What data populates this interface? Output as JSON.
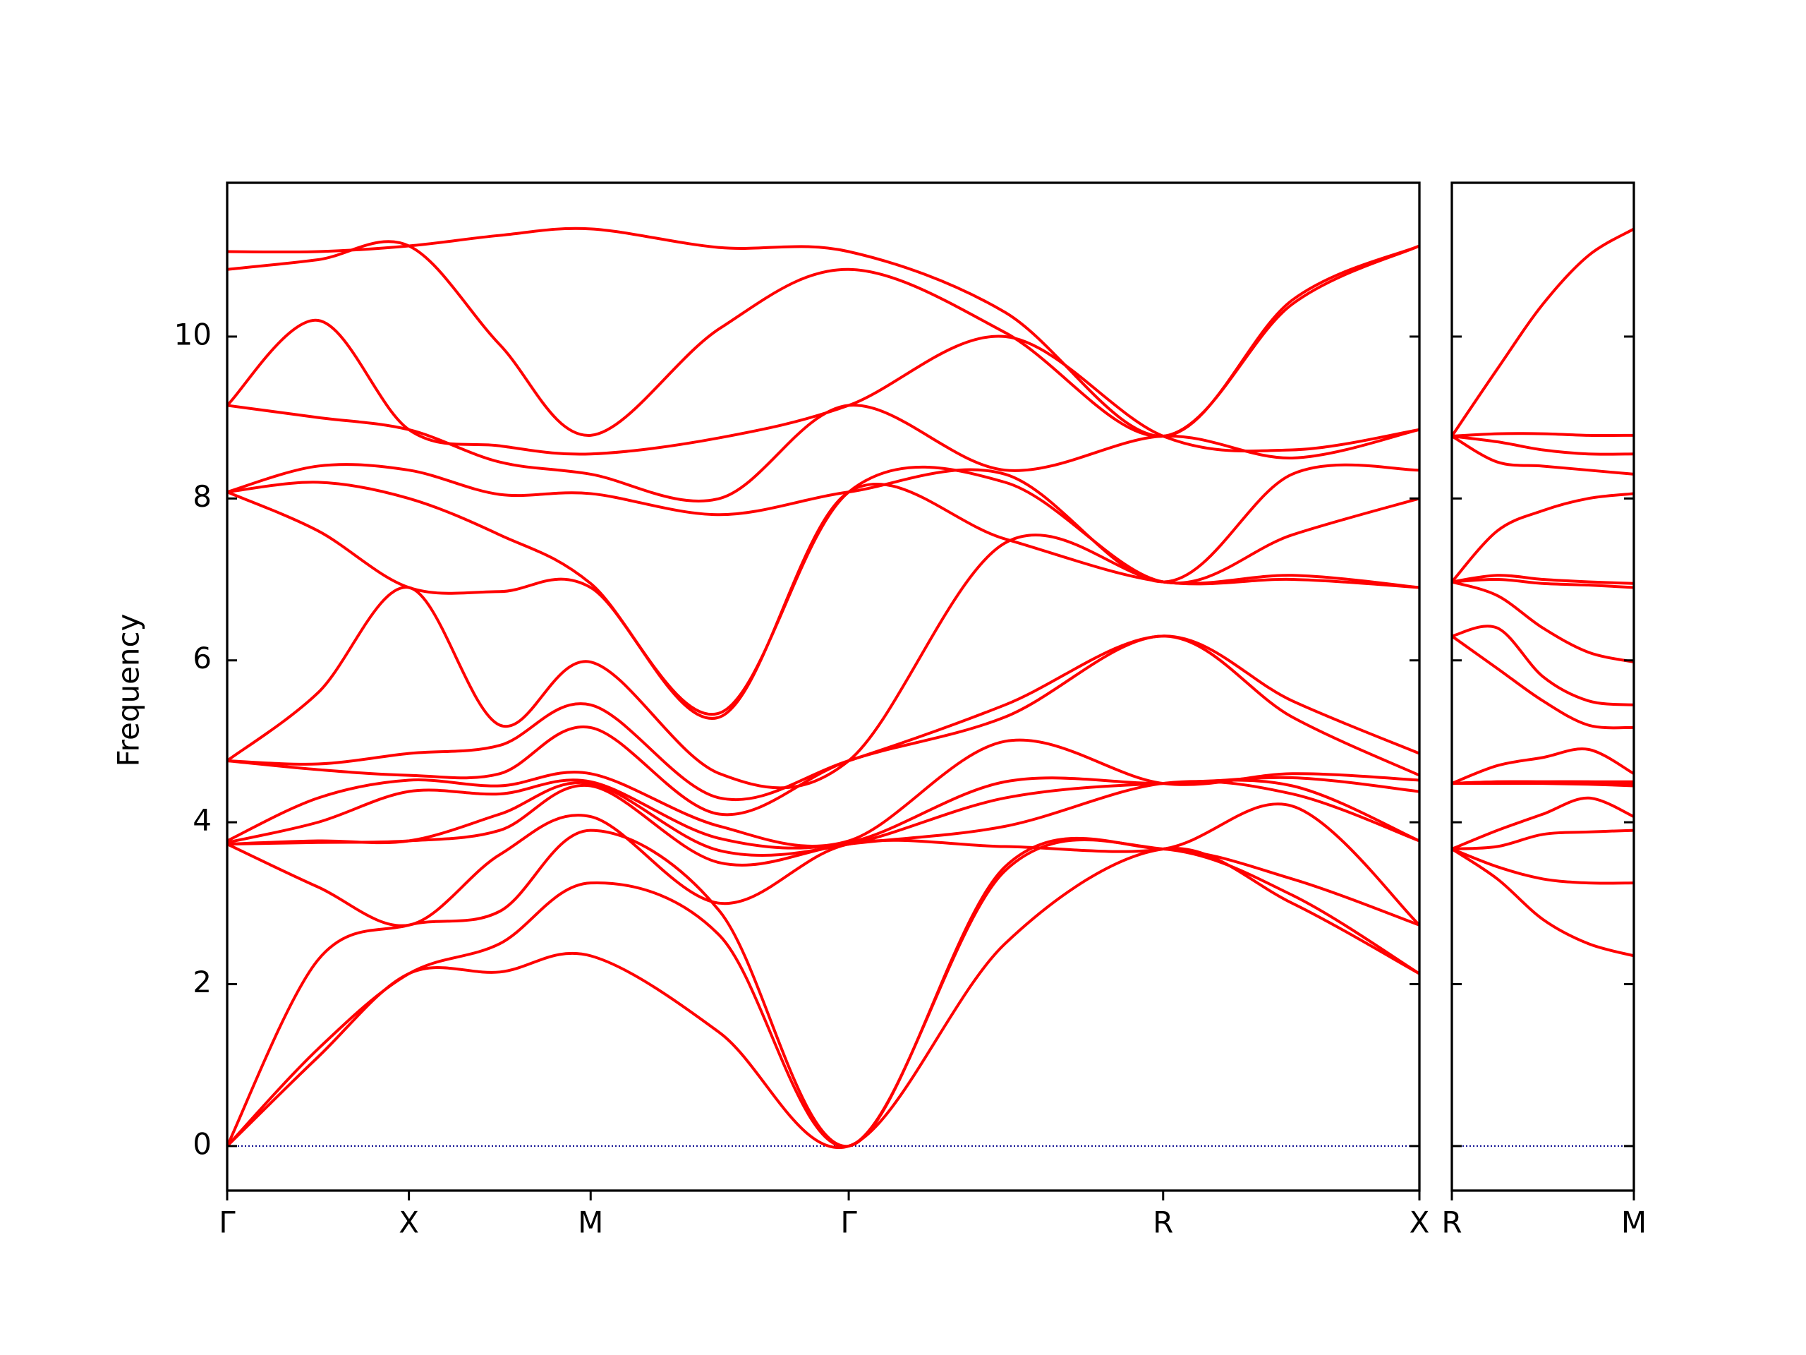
{
  "chart_data": [
    {
      "type": "line",
      "ylabel": "Frequency",
      "color": "#ff0000",
      "hline": 0,
      "hline_color": "#00008b",
      "show_ytick_labels": true,
      "x": [
        0,
        0.5,
        1,
        1.5,
        2,
        2.71,
        3.42,
        4.28,
        5.15,
        5.86,
        6.56
      ],
      "xlim": [
        0,
        6.56
      ],
      "xticks": [
        {
          "value": 0,
          "label": "Γ"
        },
        {
          "value": 1,
          "label": "X"
        },
        {
          "value": 2,
          "label": "M"
        },
        {
          "value": 3.42,
          "label": "Γ"
        },
        {
          "value": 5.15,
          "label": "R"
        },
        {
          "value": 6.56,
          "label": "X"
        }
      ],
      "ylim": [
        -0.55,
        11.9
      ],
      "yticks": [
        0,
        2,
        4,
        6,
        8,
        10
      ],
      "series": [
        {
          "values": [
            0,
            1.1,
            2.13,
            2.15,
            2.35,
            1.4,
            0,
            2.5,
            3.67,
            3.0,
            2.13
          ]
        },
        {
          "values": [
            0,
            1.2,
            2.13,
            2.5,
            3.25,
            2.6,
            0,
            3.4,
            3.67,
            3.1,
            2.13
          ]
        },
        {
          "values": [
            0,
            2.3,
            2.73,
            2.9,
            3.9,
            2.9,
            0,
            3.45,
            3.67,
            3.3,
            2.73
          ]
        },
        {
          "values": [
            3.73,
            3.2,
            2.73,
            3.6,
            4.07,
            3.0,
            3.73,
            3.7,
            3.67,
            4.2,
            2.73
          ]
        },
        {
          "values": [
            3.73,
            3.75,
            3.77,
            3.9,
            4.45,
            3.5,
            3.73,
            3.95,
            4.48,
            4.35,
            3.77
          ]
        },
        {
          "values": [
            3.73,
            3.77,
            3.77,
            4.1,
            4.48,
            3.65,
            3.73,
            4.3,
            4.48,
            4.45,
            3.77
          ]
        },
        {
          "values": [
            3.75,
            4.0,
            4.38,
            4.35,
            4.5,
            3.8,
            3.75,
            4.5,
            4.48,
            4.55,
            4.38
          ]
        },
        {
          "values": [
            3.77,
            4.3,
            4.52,
            4.45,
            4.6,
            3.95,
            3.77,
            5.0,
            4.48,
            4.6,
            4.52
          ]
        },
        {
          "values": [
            4.76,
            4.65,
            4.58,
            4.6,
            5.17,
            4.1,
            4.76,
            5.3,
            6.3,
            5.3,
            4.58
          ]
        },
        {
          "values": [
            4.76,
            4.72,
            4.85,
            4.95,
            5.45,
            4.3,
            4.76,
            5.45,
            6.3,
            5.5,
            4.85
          ]
        },
        {
          "values": [
            4.76,
            5.6,
            6.9,
            5.2,
            5.98,
            4.6,
            4.76,
            7.45,
            6.97,
            7.0,
            6.9
          ]
        },
        {
          "values": [
            8.08,
            7.6,
            6.9,
            6.85,
            6.9,
            5.3,
            8.08,
            7.5,
            6.97,
            7.05,
            6.9
          ]
        },
        {
          "values": [
            8.08,
            8.2,
            8.0,
            7.55,
            6.95,
            5.35,
            8.08,
            8.2,
            6.97,
            7.55,
            8.0
          ]
        },
        {
          "values": [
            8.08,
            8.4,
            8.35,
            8.05,
            8.06,
            7.8,
            8.08,
            8.3,
            6.97,
            8.3,
            8.35
          ]
        },
        {
          "values": [
            9.15,
            9.0,
            8.85,
            8.45,
            8.3,
            8.0,
            9.15,
            8.35,
            8.77,
            8.5,
            8.85
          ]
        },
        {
          "values": [
            9.15,
            10.2,
            8.85,
            8.65,
            8.55,
            8.75,
            9.15,
            10.0,
            8.77,
            8.6,
            8.85
          ]
        },
        {
          "values": [
            10.83,
            10.95,
            11.12,
            9.9,
            8.78,
            10.1,
            10.83,
            10.05,
            8.77,
            10.4,
            11.12
          ]
        },
        {
          "values": [
            11.05,
            11.05,
            11.12,
            11.25,
            11.33,
            11.1,
            11.05,
            10.3,
            8.77,
            10.45,
            11.12
          ]
        }
      ]
    },
    {
      "type": "line",
      "color": "#ff0000",
      "hline": 0,
      "hline_color": "#00008b",
      "show_ytick_labels": false,
      "x": [
        0,
        0.25,
        0.5,
        0.75,
        1
      ],
      "xlim": [
        0,
        1
      ],
      "xticks": [
        {
          "value": 0,
          "label": "R"
        },
        {
          "value": 1,
          "label": "M"
        }
      ],
      "ylim": [
        -0.55,
        11.9
      ],
      "yticks": [
        0,
        2,
        4,
        6,
        8,
        10
      ],
      "series": [
        {
          "values": [
            3.67,
            3.3,
            2.8,
            2.5,
            2.35
          ]
        },
        {
          "values": [
            3.67,
            3.45,
            3.3,
            3.25,
            3.25
          ]
        },
        {
          "values": [
            3.67,
            3.7,
            3.85,
            3.88,
            3.9
          ]
        },
        {
          "values": [
            3.67,
            3.9,
            4.1,
            4.3,
            4.07
          ]
        },
        {
          "values": [
            4.48,
            4.48,
            4.48,
            4.47,
            4.45
          ]
        },
        {
          "values": [
            4.48,
            4.5,
            4.5,
            4.5,
            4.48
          ]
        },
        {
          "values": [
            4.48,
            4.5,
            4.5,
            4.5,
            4.5
          ]
        },
        {
          "values": [
            4.48,
            4.7,
            4.8,
            4.9,
            4.6
          ]
        },
        {
          "values": [
            6.3,
            5.9,
            5.5,
            5.2,
            5.17
          ]
        },
        {
          "values": [
            6.3,
            6.4,
            5.8,
            5.5,
            5.45
          ]
        },
        {
          "values": [
            6.97,
            6.8,
            6.4,
            6.1,
            5.98
          ]
        },
        {
          "values": [
            6.97,
            7.0,
            6.95,
            6.93,
            6.9
          ]
        },
        {
          "values": [
            6.97,
            7.05,
            7.0,
            6.97,
            6.95
          ]
        },
        {
          "values": [
            6.97,
            7.6,
            7.85,
            8.0,
            8.06
          ]
        },
        {
          "values": [
            8.77,
            8.45,
            8.4,
            8.35,
            8.3
          ]
        },
        {
          "values": [
            8.77,
            8.7,
            8.6,
            8.55,
            8.55
          ]
        },
        {
          "values": [
            8.77,
            8.8,
            8.8,
            8.78,
            8.78
          ]
        },
        {
          "values": [
            8.77,
            9.6,
            10.4,
            11.0,
            11.33
          ]
        }
      ]
    }
  ]
}
